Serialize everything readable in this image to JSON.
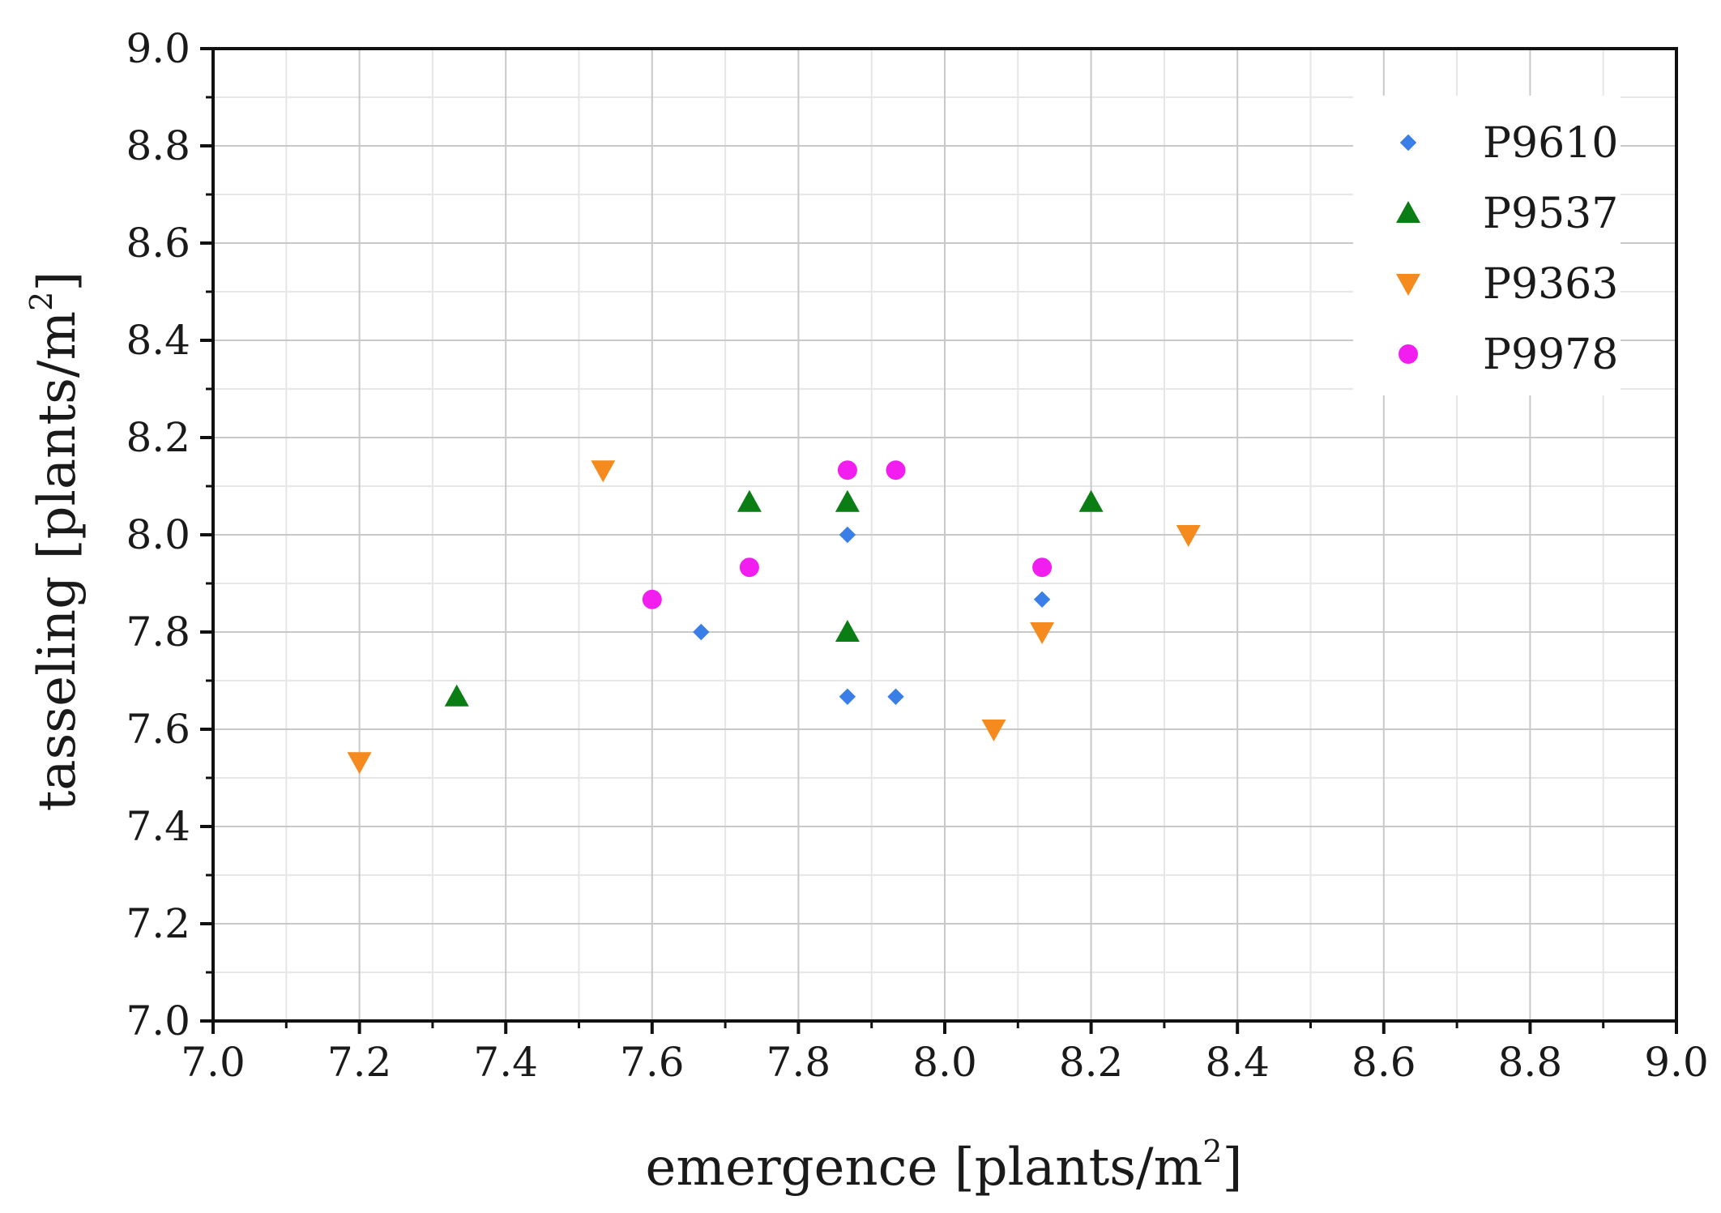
{
  "chart_data": {
    "type": "scatter",
    "title": "",
    "xlabel": "emergence [plants/m",
    "xlabel_sup": "2",
    "xlabel_tail": "]",
    "ylabel": "tasseling [plants/m",
    "ylabel_sup": "2",
    "ylabel_tail": "]",
    "xlim": [
      7.0,
      9.0
    ],
    "ylim": [
      7.0,
      9.0
    ],
    "x_ticks": [
      "7.0",
      "7.2",
      "7.4",
      "7.6",
      "7.8",
      "8.0",
      "8.2",
      "8.4",
      "8.6",
      "8.8",
      "9.0"
    ],
    "y_ticks": [
      "7.0",
      "7.2",
      "7.4",
      "7.6",
      "7.8",
      "8.0",
      "8.2",
      "8.4",
      "8.6",
      "8.8",
      "9.0"
    ],
    "grid": true,
    "legend_position": "top-right",
    "series": [
      {
        "name": "P9610",
        "marker": "diamond",
        "color": "#3a7ee8",
        "points": [
          [
            7.667,
            7.8
          ],
          [
            7.867,
            8.0
          ],
          [
            7.867,
            7.667
          ],
          [
            7.933,
            7.667
          ],
          [
            8.133,
            7.867
          ]
        ]
      },
      {
        "name": "P9537",
        "marker": "triangle-up",
        "color": "#0a7d14",
        "points": [
          [
            7.333,
            7.667
          ],
          [
            7.733,
            8.067
          ],
          [
            7.867,
            8.067
          ],
          [
            7.867,
            7.8
          ],
          [
            8.2,
            8.067
          ]
        ]
      },
      {
        "name": "P9363",
        "marker": "triangle-down",
        "color": "#f58a1f",
        "points": [
          [
            7.2,
            7.533
          ],
          [
            7.533,
            8.133
          ],
          [
            8.067,
            7.6
          ],
          [
            8.133,
            7.8
          ],
          [
            8.333,
            8.0
          ]
        ]
      },
      {
        "name": "P9978",
        "marker": "circle",
        "color": "#f21ef0",
        "points": [
          [
            7.6,
            7.867
          ],
          [
            7.733,
            7.933
          ],
          [
            7.867,
            8.133
          ],
          [
            7.933,
            8.133
          ],
          [
            8.133,
            7.933
          ]
        ]
      }
    ]
  }
}
